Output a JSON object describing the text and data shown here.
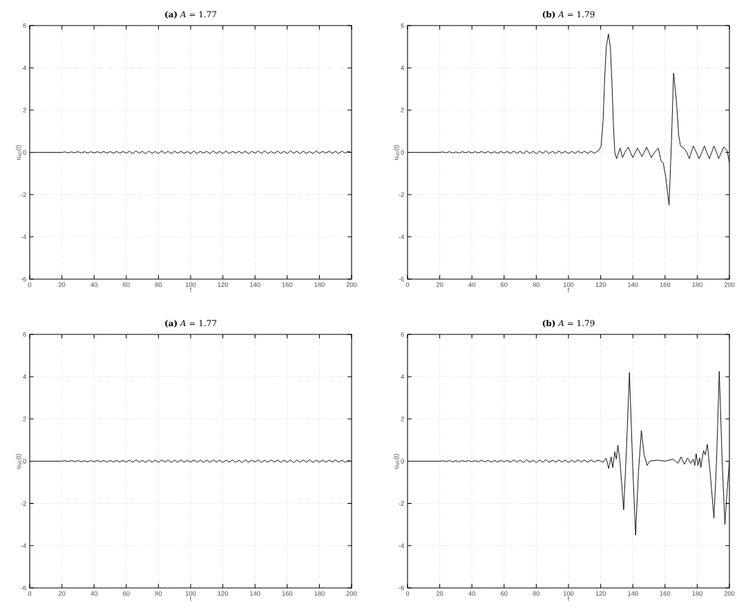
{
  "chart_data": [
    {
      "type": "line",
      "title": "**(a)** *A* = 1.77",
      "xlabel": "t",
      "ylabel": "u$_{60}$(t)",
      "xlim": [
        0,
        200
      ],
      "ylim": [
        -6,
        6
      ],
      "xticks": [
        0,
        20,
        40,
        60,
        80,
        100,
        120,
        140,
        160,
        180,
        200
      ],
      "yticks": [
        -6,
        -4,
        -2,
        0,
        2,
        4,
        6
      ],
      "grid": true,
      "color": "#000000",
      "x": [
        0,
        2,
        4,
        6,
        8,
        10,
        12,
        14,
        16,
        18,
        20,
        22,
        24,
        26,
        28,
        30,
        32,
        34,
        36,
        38,
        40,
        42,
        44,
        46,
        48,
        50,
        52,
        54,
        56,
        58,
        60,
        62,
        64,
        66,
        68,
        70,
        72,
        74,
        76,
        78,
        80,
        82,
        84,
        86,
        88,
        90,
        92,
        94,
        96,
        98,
        100,
        102,
        104,
        106,
        108,
        110,
        112,
        114,
        116,
        118,
        120,
        122,
        124,
        126,
        128,
        130,
        132,
        134,
        136,
        138,
        140,
        142,
        144,
        146,
        148,
        150,
        152,
        154,
        156,
        158,
        160,
        162,
        164,
        166,
        168,
        170,
        172,
        174,
        176,
        178,
        180,
        182,
        184,
        186,
        188,
        190,
        192,
        194,
        196,
        198,
        200
      ],
      "values": [
        0,
        0,
        0,
        0,
        0,
        0,
        0,
        0,
        0,
        0,
        0,
        0.02,
        -0.02,
        0.02,
        -0.02,
        0.03,
        -0.03,
        0.03,
        -0.03,
        0.03,
        -0.03,
        0.03,
        -0.03,
        0.04,
        -0.04,
        0.04,
        -0.04,
        0.04,
        -0.04,
        0.04,
        -0.04,
        0.05,
        -0.06,
        0.07,
        -0.04,
        0.05,
        -0.07,
        0.06,
        -0.05,
        0.04,
        -0.06,
        0.07,
        -0.05,
        0.05,
        -0.06,
        0.06,
        -0.04,
        0.05,
        -0.05,
        0.04,
        -0.06,
        0.06,
        -0.05,
        0.05,
        -0.04,
        0.05,
        -0.06,
        0.07,
        -0.05,
        0.04,
        -0.05,
        0.06,
        -0.06,
        0.05,
        -0.04,
        0.05,
        -0.05,
        0.06,
        -0.07,
        0.05,
        -0.04,
        0.06,
        -0.05,
        0.07,
        -0.06,
        0.04,
        -0.05,
        0.06,
        -0.05,
        0.05,
        -0.06,
        0.07,
        -0.04,
        0.05,
        -0.06,
        0.06,
        -0.05,
        0.04,
        -0.06,
        0.07,
        -0.05,
        0.05,
        -0.04,
        0.06,
        -0.05,
        0.05,
        -0.06,
        0.06,
        -0.04,
        0.05,
        -0.02
      ]
    },
    {
      "type": "line",
      "title": "**(b)** *A* = 1.79",
      "xlabel": "t",
      "ylabel": "u$_{60}$(t)",
      "xlim": [
        0,
        200
      ],
      "ylim": [
        -6,
        6
      ],
      "xticks": [
        0,
        20,
        40,
        60,
        80,
        100,
        120,
        140,
        160,
        180,
        200
      ],
      "yticks": [
        -6,
        -4,
        -2,
        0,
        2,
        4,
        6
      ],
      "grid": true,
      "color": "#000000",
      "x": [
        0,
        2,
        4,
        6,
        8,
        10,
        12,
        14,
        16,
        18,
        20,
        22,
        24,
        26,
        28,
        30,
        32,
        34,
        36,
        38,
        40,
        42,
        44,
        46,
        48,
        50,
        52,
        54,
        56,
        58,
        60,
        62,
        64,
        66,
        68,
        70,
        72,
        74,
        76,
        78,
        80,
        82,
        84,
        86,
        88,
        90,
        92,
        94,
        96,
        98,
        100,
        102,
        104,
        106,
        108,
        110,
        112,
        114,
        116,
        118,
        119,
        120.3,
        121.5,
        122.5,
        123.5,
        124.8,
        126,
        127,
        128,
        128.8,
        129.9,
        131,
        132.1,
        133.6,
        135,
        137.2,
        138.5,
        140,
        141.5,
        142.9,
        144.3,
        145.7,
        147,
        148.6,
        150,
        151.5,
        153.5,
        155.8,
        157.5,
        158.9,
        160.5,
        162.5,
        164,
        165.3,
        167,
        168.5,
        169.6,
        171.8,
        173.5,
        175.1,
        177.5,
        179.5,
        181.1,
        183,
        184.4,
        186,
        187.5,
        189,
        190.4,
        192,
        193.3,
        195,
        196.4,
        198.5,
        200
      ],
      "values": [
        0,
        0,
        0,
        0,
        0,
        0,
        0,
        0,
        0,
        0,
        0,
        0.02,
        -0.02,
        0.03,
        -0.03,
        0.02,
        -0.03,
        0.03,
        -0.02,
        0.03,
        -0.03,
        0.03,
        -0.03,
        0.04,
        -0.03,
        0.04,
        -0.04,
        0.03,
        -0.04,
        0.04,
        -0.03,
        0.04,
        -0.05,
        0.06,
        -0.04,
        0.05,
        -0.06,
        0.07,
        -0.05,
        0.05,
        -0.07,
        0.06,
        -0.05,
        0.07,
        -0.06,
        0.05,
        -0.05,
        0.06,
        -0.04,
        0.05,
        -0.06,
        0.05,
        -0.05,
        0.06,
        -0.04,
        0.05,
        -0.05,
        0.06,
        -0.04,
        0.05,
        0.1,
        0.3,
        1.5,
        3.5,
        5.0,
        5.6,
        5.0,
        3.3,
        1.2,
        0.0,
        -0.3,
        -0.05,
        0.2,
        -0.25,
        0.0,
        0.25,
        0.0,
        -0.25,
        0.0,
        0.2,
        0.0,
        -0.2,
        0.0,
        0.25,
        0.0,
        -0.25,
        0.0,
        0.2,
        -0.4,
        -0.5,
        -1.2,
        -2.5,
        0.5,
        3.75,
        2.5,
        0.8,
        0.3,
        0.2,
        0.0,
        -0.3,
        0.3,
        0.0,
        -0.3,
        0.0,
        0.3,
        0.0,
        -0.3,
        0.0,
        0.3,
        0.0,
        -0.3,
        0.0,
        0.25,
        0.1,
        -0.5
      ]
    },
    {
      "type": "line",
      "title": "**(a)** *A* = 1.77",
      "xlabel": "t",
      "ylabel": "u$_{60}$(t)",
      "xlim": [
        0,
        200
      ],
      "ylim": [
        -6,
        6
      ],
      "xticks": [
        0,
        20,
        40,
        60,
        80,
        100,
        120,
        140,
        160,
        180,
        200
      ],
      "yticks": [
        -6,
        -4,
        -2,
        0,
        2,
        4,
        6
      ],
      "grid": true,
      "color": "#000000",
      "x": [
        0,
        2,
        4,
        6,
        8,
        10,
        12,
        14,
        16,
        18,
        20,
        22,
        24,
        26,
        28,
        30,
        32,
        34,
        36,
        38,
        40,
        42,
        44,
        46,
        48,
        50,
        52,
        54,
        56,
        58,
        60,
        62,
        64,
        66,
        68,
        70,
        72,
        74,
        76,
        78,
        80,
        82,
        84,
        86,
        88,
        90,
        92,
        94,
        96,
        98,
        100,
        102,
        104,
        106,
        108,
        110,
        112,
        114,
        116,
        118,
        120,
        122,
        124,
        126,
        128,
        130,
        132,
        134,
        136,
        138,
        140,
        142,
        144,
        146,
        148,
        150,
        152,
        154,
        156,
        158,
        160,
        162,
        164,
        166,
        168,
        170,
        172,
        174,
        176,
        178,
        180,
        182,
        184,
        186,
        188,
        190,
        192,
        194,
        196,
        198,
        200
      ],
      "values": [
        0,
        0,
        0,
        0,
        0,
        0,
        0,
        0,
        0,
        0,
        0,
        0.02,
        -0.02,
        0.03,
        -0.02,
        0.03,
        -0.03,
        0.02,
        -0.03,
        0.03,
        -0.03,
        0.04,
        -0.03,
        0.03,
        -0.04,
        0.04,
        -0.04,
        0.03,
        -0.04,
        0.04,
        -0.04,
        0.05,
        -0.05,
        0.06,
        -0.05,
        0.04,
        -0.06,
        0.06,
        -0.05,
        0.05,
        -0.06,
        0.06,
        -0.04,
        0.05,
        -0.06,
        0.05,
        -0.05,
        0.06,
        -0.05,
        0.04,
        -0.05,
        0.06,
        -0.05,
        0.05,
        -0.06,
        0.05,
        -0.05,
        0.06,
        -0.04,
        0.05,
        -0.06,
        0.05,
        -0.05,
        0.06,
        -0.05,
        0.04,
        -0.06,
        0.06,
        -0.05,
        0.05,
        -0.04,
        0.06,
        -0.06,
        0.05,
        -0.05,
        0.06,
        -0.04,
        0.05,
        -0.06,
        0.05,
        -0.05,
        0.06,
        -0.07,
        0.05,
        -0.05,
        0.06,
        -0.05,
        0.07,
        -0.06,
        0.05,
        -0.05,
        0.06,
        -0.05,
        0.05,
        -0.04,
        0.06,
        -0.05,
        0.05,
        -0.06,
        0.04,
        -0.02
      ]
    },
    {
      "type": "line",
      "title": "**(b)** *A* = 1.79",
      "xlabel": "t",
      "ylabel": "u$_{60}$(t)",
      "xlim": [
        0,
        200
      ],
      "ylim": [
        -6,
        6
      ],
      "xticks": [
        0,
        20,
        40,
        60,
        80,
        100,
        120,
        140,
        160,
        180,
        200
      ],
      "yticks": [
        -6,
        -4,
        -2,
        0,
        2,
        4,
        6
      ],
      "grid": true,
      "color": "#000000",
      "x": [
        0,
        2,
        4,
        6,
        8,
        10,
        12,
        14,
        16,
        18,
        20,
        22,
        24,
        26,
        28,
        30,
        32,
        34,
        36,
        38,
        40,
        42,
        44,
        46,
        48,
        50,
        52,
        54,
        56,
        58,
        60,
        62,
        64,
        66,
        68,
        70,
        72,
        74,
        76,
        78,
        80,
        82,
        84,
        86,
        88,
        90,
        92,
        94,
        96,
        98,
        100,
        102,
        104,
        106,
        108,
        110,
        112,
        114,
        116,
        118,
        120,
        121.5,
        123.4,
        125,
        126.5,
        127.5,
        128.8,
        129.7,
        130.7,
        132,
        134.3,
        136,
        137.9,
        139.8,
        141.7,
        143.5,
        145.3,
        147,
        148.9,
        150.5,
        155,
        160,
        165,
        168,
        170,
        172,
        174,
        176,
        177.5,
        178.5,
        179.3,
        180.5,
        181.5,
        182.3,
        183,
        184,
        185,
        186.3,
        188,
        190.4,
        192,
        193.7,
        195.5,
        197.2,
        198.5,
        200
      ],
      "values": [
        0,
        0,
        0,
        0,
        0,
        0,
        0,
        0,
        0,
        0,
        0,
        0.02,
        -0.02,
        0.03,
        -0.03,
        0.02,
        -0.03,
        0.03,
        -0.02,
        0.03,
        -0.03,
        0.03,
        -0.03,
        0.04,
        -0.03,
        0.04,
        -0.04,
        0.03,
        -0.04,
        0.04,
        -0.03,
        0.04,
        -0.05,
        0.06,
        -0.04,
        0.05,
        -0.06,
        0.07,
        -0.05,
        0.05,
        -0.07,
        0.06,
        -0.05,
        0.07,
        -0.06,
        0.05,
        -0.05,
        0.06,
        -0.04,
        0.05,
        -0.06,
        0.05,
        -0.05,
        0.06,
        -0.04,
        0.05,
        -0.05,
        0.06,
        -0.04,
        0.05,
        0.0,
        -0.05,
        0.15,
        -0.35,
        0.2,
        -0.3,
        0.45,
        0.1,
        0.75,
        0.0,
        -2.3,
        0.5,
        4.2,
        0.0,
        -3.5,
        -0.5,
        1.45,
        0.3,
        -0.2,
        0.0,
        0.05,
        0.0,
        0.1,
        -0.1,
        0.2,
        -0.15,
        0.15,
        -0.1,
        0.1,
        -0.2,
        0.35,
        -0.2,
        0.15,
        -0.3,
        0.1,
        0.5,
        0.3,
        0.8,
        -0.5,
        -2.7,
        0.0,
        4.25,
        0.0,
        -3.0,
        -1.5,
        0.0
      ]
    }
  ]
}
